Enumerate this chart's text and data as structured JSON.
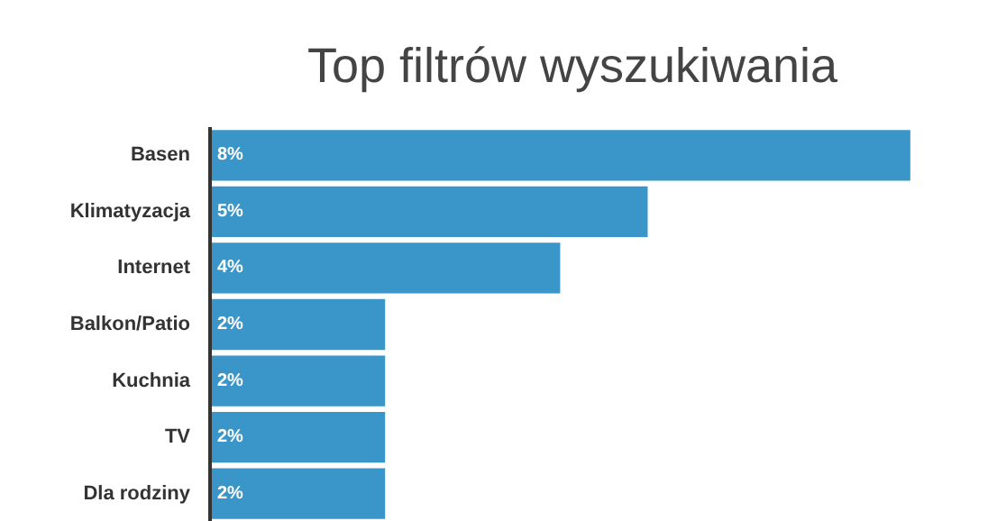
{
  "chart_data": {
    "type": "bar",
    "orientation": "horizontal",
    "title": "Top filtrów wyszukiwania",
    "categories": [
      "Basen",
      "Klimatyzacja",
      "Internet",
      "Balkon/Patio",
      "Kuchnia",
      "TV",
      "Dla rodziny"
    ],
    "values": [
      8,
      5,
      4,
      2,
      2,
      2,
      2
    ],
    "value_labels": [
      "8%",
      "5%",
      "4%",
      "2%",
      "2%",
      "2%",
      "2%"
    ],
    "color": "#3a96c8",
    "grid": false
  }
}
